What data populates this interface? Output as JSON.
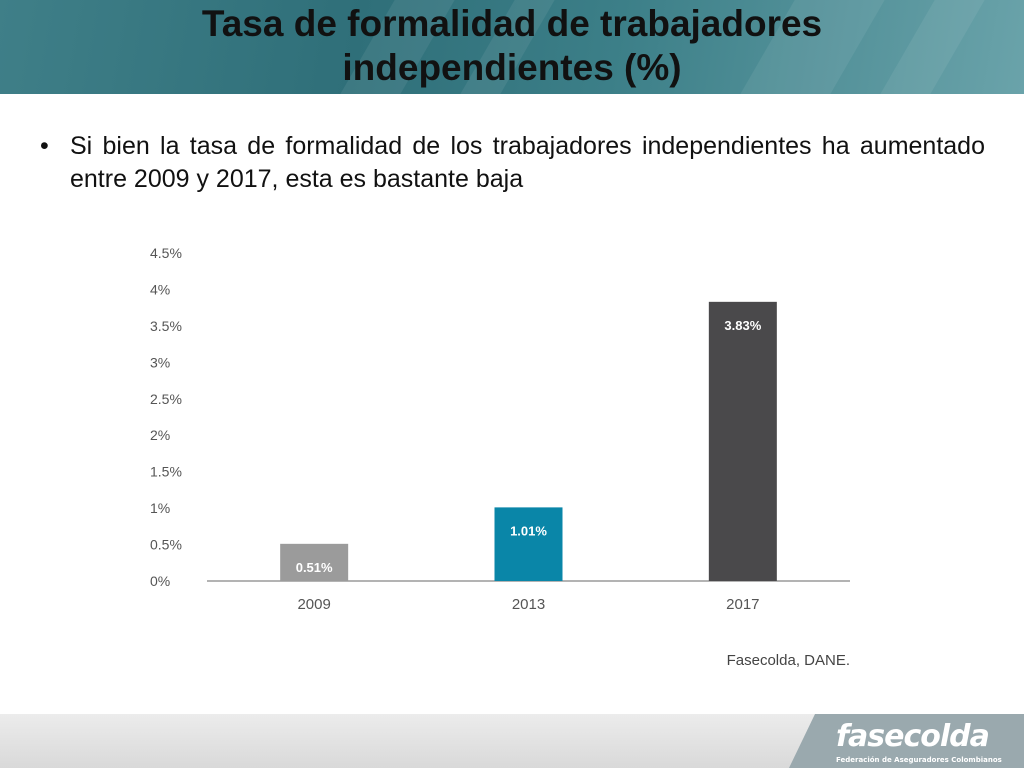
{
  "slide": {
    "title_line1": "Tasa de formalidad de trabajadores",
    "title_line2": "independientes (%)",
    "bullet_symbol": "•",
    "bullet_text": "Si bien la tasa de formalidad de los trabajadores independientes ha aumentado entre 2009 y 2017, esta es bastante baja"
  },
  "logo": {
    "word": "fasecolda",
    "tagline": "Federación de Aseguradores Colombianos"
  },
  "chart_data": {
    "type": "bar",
    "categories": [
      "2009",
      "2013",
      "2017"
    ],
    "values": [
      0.51,
      1.01,
      3.83
    ],
    "data_labels": [
      "0.51%",
      "1.01%",
      "3.83%"
    ],
    "bar_colors": [
      "#9b9b9b",
      "#0a86a8",
      "#4a494b"
    ],
    "ylim": [
      0,
      4.5
    ],
    "yticks": [
      0,
      0.5,
      1,
      1.5,
      2,
      2.5,
      3,
      3.5,
      4,
      4.5
    ],
    "ytick_labels": [
      "0%",
      "0.5%",
      "1%",
      "1.5%",
      "2%",
      "2.5%",
      "3%",
      "3.5%",
      "4%",
      "4.5%"
    ],
    "grid": false,
    "source": "Fasecolda, DANE."
  }
}
